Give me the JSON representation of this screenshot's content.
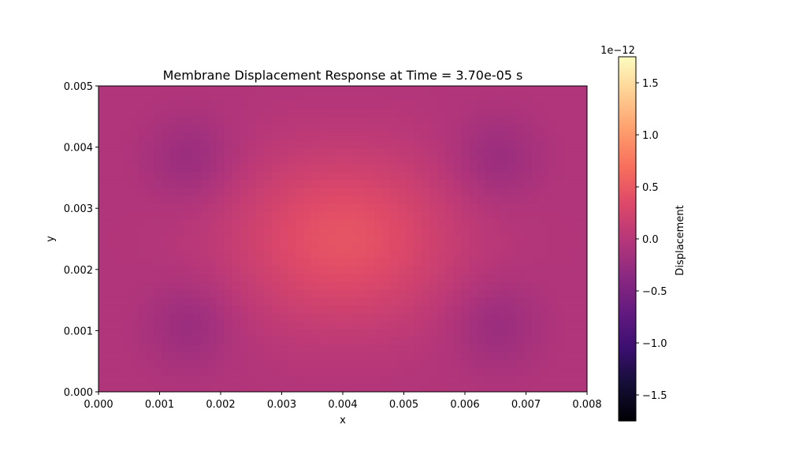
{
  "chart_data": {
    "type": "heatmap",
    "title": "Membrane Displacement Response at Time = 3.70e-05 s",
    "xlabel": "x",
    "ylabel": "y",
    "xlim": [
      0.0,
      0.008
    ],
    "ylim": [
      0.0,
      0.005
    ],
    "xticks": [
      "0.000",
      "0.001",
      "0.002",
      "0.003",
      "0.004",
      "0.005",
      "0.006",
      "0.007",
      "0.008"
    ],
    "yticks": [
      "0.000",
      "0.001",
      "0.002",
      "0.003",
      "0.004",
      "0.005"
    ],
    "colorbar": {
      "label": "Displacement",
      "offset_label": "1e−12",
      "range": [
        -1.75,
        1.75
      ],
      "ticks": [
        "−1.5",
        "−1.0",
        "−0.5",
        "0.0",
        "0.5",
        "1.0",
        "1.5"
      ],
      "tick_values": [
        -1.5,
        -1.0,
        -0.5,
        0.0,
        0.5,
        1.0,
        1.5
      ],
      "colormap": "magma"
    },
    "field": {
      "description": "displacement in units of 1e-12",
      "center_peak": {
        "x": 0.004,
        "y": 0.0025,
        "value": 0.45
      },
      "troughs": [
        {
          "x": 0.0015,
          "y": 0.0038,
          "value": -0.25
        },
        {
          "x": 0.0065,
          "y": 0.0038,
          "value": -0.25
        },
        {
          "x": 0.0015,
          "y": 0.0011,
          "value": -0.25
        },
        {
          "x": 0.0065,
          "y": 0.0011,
          "value": -0.25
        }
      ],
      "boundary_value": -0.05
    }
  }
}
